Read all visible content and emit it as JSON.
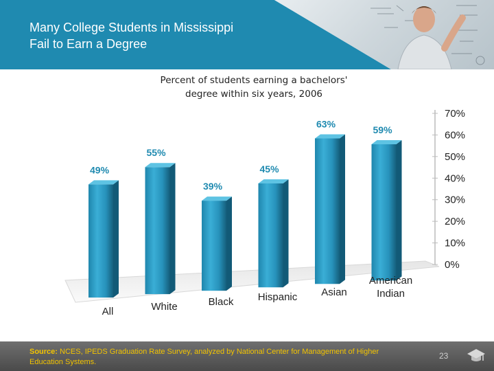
{
  "header": {
    "title_line1": "Many College Students in Mississippi",
    "title_line2": "Fail to Earn a Degree"
  },
  "footer": {
    "source_prefix": "Source:",
    "source_text": "NCES, IPEDS Graduation Rate Survey, analyzed by National Center for Management of Higher Education Systems.",
    "page_number": "23"
  },
  "colors": {
    "accent": "#1f8ab0",
    "bar": "#2a9cc4",
    "label": "#1f8ab0",
    "footer": "#555555",
    "source": "#f2c300"
  },
  "chart_data": {
    "type": "bar",
    "title_line1": "Percent of students earning a bachelors'",
    "title_line2": "degree within six years, 2006",
    "categories": [
      [
        "All"
      ],
      [
        "White"
      ],
      [
        "Black"
      ],
      [
        "Hispanic"
      ],
      [
        "Asian"
      ],
      [
        "American",
        "Indian"
      ]
    ],
    "values": [
      49,
      55,
      39,
      45,
      63,
      59
    ],
    "value_labels": [
      "49%",
      "55%",
      "39%",
      "45%",
      "63%",
      "59%"
    ],
    "yticks": [
      "0%",
      "10%",
      "20%",
      "30%",
      "40%",
      "50%",
      "60%",
      "70%"
    ],
    "ylim": [
      0,
      70
    ],
    "grid": false,
    "axis_position": "right",
    "style": "3d-cylinder"
  }
}
